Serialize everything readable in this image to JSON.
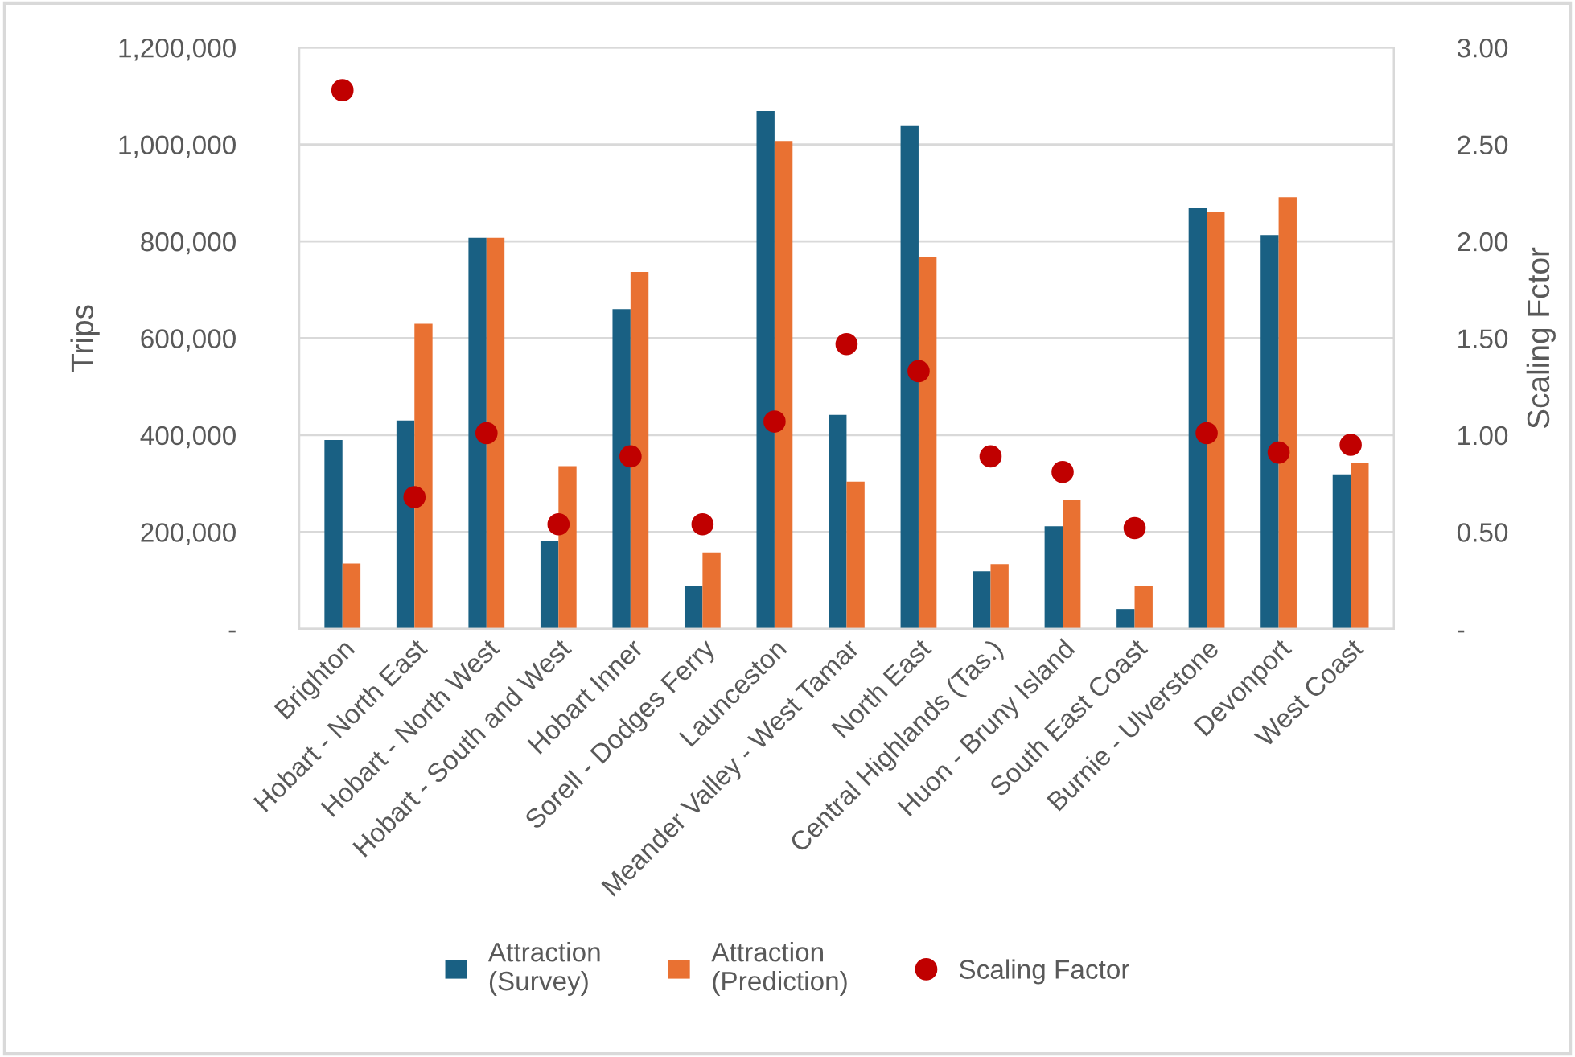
{
  "chart_data": {
    "type": "bar",
    "categories": [
      "Brighton",
      "Hobart - North East",
      "Hobart - North West",
      "Hobart - South and West",
      "Hobart Inner",
      "Sorell - Dodges Ferry",
      "Launceston",
      "Meander Valley - West Tamar",
      "North East",
      "Central Highlands (Tas.)",
      "Huon - Bruny Island",
      "South East Coast",
      "Burnie - Ulverstone",
      "Devonport",
      "West Coast"
    ],
    "series": [
      {
        "name": "Attraction\n(Survey)",
        "color": "#196083",
        "values": [
          390000,
          430000,
          807000,
          181000,
          660000,
          89000,
          1069000,
          442000,
          1038000,
          119000,
          212000,
          41000,
          868000,
          813000,
          319000
        ]
      },
      {
        "name": "Attraction\n(Prediction)",
        "color": "#e97132",
        "values": [
          135000,
          630000,
          807000,
          336000,
          737000,
          158000,
          1007000,
          304000,
          768000,
          134000,
          266000,
          88000,
          860000,
          891000,
          342000
        ]
      },
      {
        "name": "Scaling Factor",
        "type": "scatter",
        "axis": "y2",
        "color": "#c00000",
        "x": [
          "Brighton",
          "Hobart - North East",
          "Hobart - North West",
          "Hobart - South and West",
          "Hobart Inner",
          "Sorell - Dodges Ferry",
          "Launceston",
          "Meander Valley - West Tamar",
          "North East",
          "Central Highlands (Tas.)",
          "Huon - Bruny Island",
          "South East Coast",
          "Burnie - Ulverstone",
          "Devonport",
          "West Coast"
        ],
        "values": [
          2.78,
          0.68,
          1.01,
          0.54,
          0.89,
          0.54,
          1.07,
          1.47,
          1.33,
          0.89,
          0.81,
          0.52,
          1.01,
          0.91,
          0.95
        ]
      }
    ],
    "ylabel": "Trips",
    "y2label": "Scaling Fctor",
    "ylim": [
      0,
      1200000
    ],
    "yticks": [
      {
        "value": 0,
        "label": "-"
      },
      {
        "value": 200000,
        "label": "200,000"
      },
      {
        "value": 400000,
        "label": "400,000"
      },
      {
        "value": 600000,
        "label": "600,000"
      },
      {
        "value": 800000,
        "label": "800,000"
      },
      {
        "value": 1000000,
        "label": "1,000,000"
      },
      {
        "value": 1200000,
        "label": "1,200,000"
      }
    ],
    "y2lim": [
      0,
      3
    ],
    "y2ticks": [
      {
        "value": 0,
        "label": "-"
      },
      {
        "value": 0.5,
        "label": "0.50"
      },
      {
        "value": 1,
        "label": "1.00"
      },
      {
        "value": 1.5,
        "label": "1.50"
      },
      {
        "value": 2,
        "label": "2.00"
      },
      {
        "value": 2.5,
        "label": "2.50"
      },
      {
        "value": 3,
        "label": "3.00"
      }
    ],
    "grid": "y",
    "legend": "bottom",
    "marker": "circle"
  }
}
